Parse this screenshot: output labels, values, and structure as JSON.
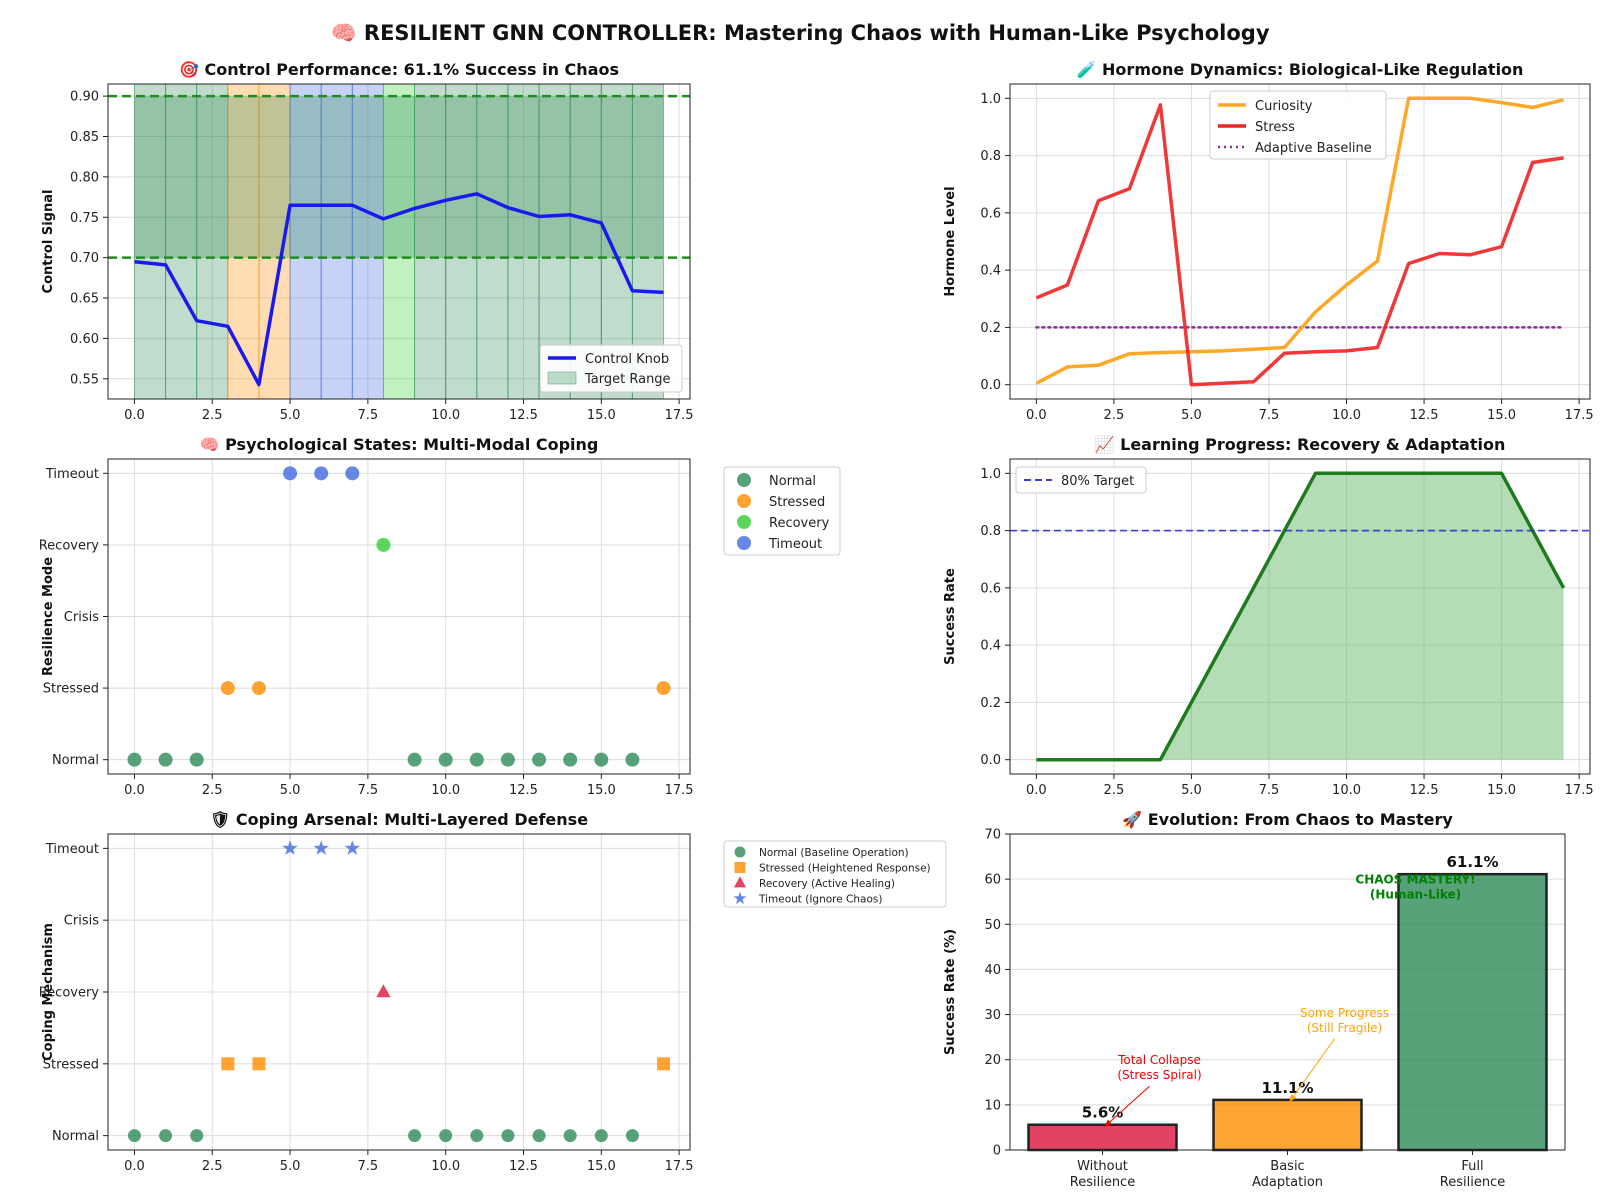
{
  "suptitle": "🧠 RESILIENT GNN CONTROLLER: Mastering Chaos with Human-Like Psychology",
  "chart_data": [
    {
      "id": "control",
      "type": "line",
      "title": "🎯 Control Performance: 61.1% Success in Chaos",
      "xlabel": "",
      "ylabel": "Control Signal",
      "xlim": [
        -0.85,
        17.85
      ],
      "ylim": [
        0.525,
        0.915
      ],
      "xticks": [
        0,
        2.5,
        5,
        7.5,
        10,
        12.5,
        15,
        17.5
      ],
      "xtick_labels": [
        "0.0",
        "2.5",
        "5.0",
        "7.5",
        "10.0",
        "12.5",
        "15.0",
        "17.5"
      ],
      "yticks": [
        0.55,
        0.6,
        0.65,
        0.7,
        0.75,
        0.8,
        0.85,
        0.9
      ],
      "ytick_labels": [
        "0.55",
        "0.60",
        "0.65",
        "0.70",
        "0.75",
        "0.80",
        "0.85",
        "0.90"
      ],
      "target_range": [
        0.7,
        0.9
      ],
      "mode_bands": [
        "Normal",
        "Normal",
        "Normal",
        "Stressed",
        "Stressed",
        "Timeout",
        "Timeout",
        "Timeout",
        "Recovery",
        "Normal",
        "Normal",
        "Normal",
        "Normal",
        "Normal",
        "Normal",
        "Normal",
        "Normal"
      ],
      "band_colors": {
        "Normal": "#2e8b57",
        "Stressed": "#ff8c00",
        "Timeout": "#4169e1",
        "Recovery": "#32cd32"
      },
      "series": [
        {
          "name": "Control Knob",
          "color": "#1a1aee",
          "x": [
            0,
            1,
            2,
            3,
            4,
            5,
            6,
            7,
            8,
            9,
            10,
            11,
            12,
            13,
            14,
            15,
            16,
            17
          ],
          "y": [
            0.695,
            0.691,
            0.622,
            0.615,
            0.543,
            0.765,
            0.765,
            0.765,
            0.748,
            0.761,
            0.771,
            0.779,
            0.762,
            0.751,
            0.753,
            0.743,
            0.659,
            0.657
          ]
        }
      ],
      "legend": [
        "Control Knob",
        "Target Range"
      ],
      "legend_position": "lower-right"
    },
    {
      "id": "hormones",
      "type": "line",
      "title": "🧪 Hormone Dynamics: Biological-Like Regulation",
      "xlabel": "",
      "ylabel": "Hormone Level",
      "xlim": [
        -0.85,
        17.85
      ],
      "ylim": [
        -0.05,
        1.05
      ],
      "xticks": [
        0,
        2.5,
        5,
        7.5,
        10,
        12.5,
        15,
        17.5
      ],
      "xtick_labels": [
        "0.0",
        "2.5",
        "5.0",
        "7.5",
        "10.0",
        "12.5",
        "15.0",
        "17.5"
      ],
      "yticks": [
        0,
        0.2,
        0.4,
        0.6,
        0.8,
        1.0
      ],
      "ytick_labels": [
        "0.0",
        "0.2",
        "0.4",
        "0.6",
        "0.8",
        "1.0"
      ],
      "series": [
        {
          "name": "Curiosity",
          "color": "#ffa726",
          "x": [
            0,
            1,
            2,
            3,
            4,
            5,
            6,
            7,
            8,
            9,
            10,
            11,
            12,
            13,
            14,
            15,
            16,
            17
          ],
          "y": [
            0.005,
            0.062,
            0.068,
            0.108,
            0.112,
            0.115,
            0.118,
            0.124,
            0.13,
            0.254,
            0.348,
            0.432,
            1.0,
            1.0,
            1.0,
            0.985,
            0.968,
            0.995
          ]
        },
        {
          "name": "Stress",
          "color": "#ee2222",
          "x": [
            0,
            1,
            2,
            3,
            4,
            5,
            6,
            7,
            8,
            9,
            10,
            11,
            12,
            13,
            14,
            15,
            16,
            17
          ],
          "y": [
            0.303,
            0.348,
            0.642,
            0.684,
            0.977,
            0.0,
            0.005,
            0.01,
            0.11,
            0.115,
            0.118,
            0.13,
            0.423,
            0.458,
            0.454,
            0.482,
            0.776,
            0.792
          ]
        },
        {
          "name": "Adaptive Baseline",
          "color": "#8e2f9e",
          "x": [
            0,
            17
          ],
          "y": [
            0.2,
            0.2
          ]
        }
      ],
      "legend_position": "upper-center"
    },
    {
      "id": "states",
      "type": "scatter",
      "title": "🧠 Psychological States: Multi-Modal Coping",
      "xlabel": "",
      "ylabel": "Resilience Mode",
      "xlim": [
        -0.85,
        17.85
      ],
      "ylim": [
        -0.2,
        4.2
      ],
      "xticks": [
        0,
        2.5,
        5,
        7.5,
        10,
        12.5,
        15,
        17.5
      ],
      "xtick_labels": [
        "0.0",
        "2.5",
        "5.0",
        "7.5",
        "10.0",
        "12.5",
        "15.0",
        "17.5"
      ],
      "y_categories": [
        "Normal",
        "Stressed",
        "Crisis",
        "Recovery",
        "Timeout"
      ],
      "series": [
        {
          "name": "Normal",
          "color": "#2e8b57",
          "level": 0,
          "x": [
            0,
            1,
            2,
            9,
            10,
            11,
            12,
            13,
            14,
            15,
            16
          ]
        },
        {
          "name": "Stressed",
          "color": "#ff8c00",
          "level": 1,
          "x": [
            3,
            4,
            17
          ]
        },
        {
          "name": "Recovery",
          "color": "#32cd32",
          "level": 3,
          "x": [
            8
          ]
        },
        {
          "name": "Timeout",
          "color": "#4169e1",
          "level": 4,
          "x": [
            5,
            6,
            7
          ]
        }
      ],
      "legend_position": "outside-upper-right"
    },
    {
      "id": "learning",
      "type": "area",
      "title": "📈 Learning Progress: Recovery & Adaptation",
      "xlabel": "",
      "ylabel": "Success Rate",
      "xlim": [
        -0.85,
        17.85
      ],
      "ylim": [
        -0.05,
        1.05
      ],
      "xticks": [
        0,
        2.5,
        5,
        7.5,
        10,
        12.5,
        15,
        17.5
      ],
      "xtick_labels": [
        "0.0",
        "2.5",
        "5.0",
        "7.5",
        "10.0",
        "12.5",
        "15.0",
        "17.5"
      ],
      "yticks": [
        0,
        0.2,
        0.4,
        0.6,
        0.8,
        1.0
      ],
      "ytick_labels": [
        "0.0",
        "0.2",
        "0.4",
        "0.6",
        "0.8",
        "1.0"
      ],
      "target": {
        "name": "80% Target",
        "value": 0.8,
        "color": "#2222dd"
      },
      "series": [
        {
          "name": "",
          "color": "#1f7a1f",
          "x": [
            0,
            1,
            2,
            3,
            4,
            5,
            6,
            7,
            8,
            9,
            10,
            11,
            12,
            13,
            14,
            15,
            16,
            17
          ],
          "y": [
            0,
            0,
            0,
            0,
            0,
            0.2,
            0.4,
            0.6,
            0.8,
            1.0,
            1.0,
            1.0,
            1.0,
            1.0,
            1.0,
            1.0,
            0.8,
            0.6
          ]
        }
      ],
      "legend_position": "upper-left"
    },
    {
      "id": "coping",
      "type": "scatter",
      "title": "🛡 Coping Arsenal: Multi-Layered Defense",
      "xlabel": "",
      "ylabel": "Coping Mechanism",
      "xlim": [
        -0.85,
        17.85
      ],
      "ylim": [
        -0.2,
        4.2
      ],
      "xticks": [
        0,
        2.5,
        5,
        7.5,
        10,
        12.5,
        15,
        17.5
      ],
      "xtick_labels": [
        "0.0",
        "2.5",
        "5.0",
        "7.5",
        "10.0",
        "12.5",
        "15.0",
        "17.5"
      ],
      "y_categories": [
        "Normal",
        "Stressed",
        "Recovery",
        "Crisis",
        "Timeout"
      ],
      "series": [
        {
          "name": "Normal (Baseline Operation)",
          "color": "#2e8b57",
          "marker": "circle",
          "level": 0,
          "x": [
            0,
            1,
            2,
            9,
            10,
            11,
            12,
            13,
            14,
            15,
            16
          ]
        },
        {
          "name": "Stressed (Heightened Response)",
          "color": "#ff8c00",
          "marker": "square",
          "level": 1,
          "x": [
            3,
            4,
            17
          ]
        },
        {
          "name": "Recovery (Active Healing)",
          "color": "#dc143c",
          "marker": "triangle",
          "level": 2,
          "x": [
            8
          ]
        },
        {
          "name": "Timeout (Ignore Chaos)",
          "color": "#4169e1",
          "marker": "star",
          "level": 4,
          "x": [
            5,
            6,
            7
          ]
        }
      ],
      "legend_position": "outside-upper-right"
    },
    {
      "id": "evolution",
      "type": "bar",
      "title": "🚀 Evolution: From Chaos to Mastery",
      "xlabel": "",
      "ylabel": "Success Rate (%)",
      "ylim": [
        0,
        70
      ],
      "yticks": [
        0,
        10,
        20,
        30,
        40,
        50,
        60,
        70
      ],
      "categories": [
        [
          "Without",
          "Resilience"
        ],
        [
          "Basic",
          "Adaptation"
        ],
        [
          "Full",
          "Resilience"
        ]
      ],
      "values": [
        5.6,
        11.1,
        61.1
      ],
      "value_labels": [
        "5.6%",
        "11.1%",
        "61.1%"
      ],
      "colors": [
        "#dc143c",
        "#ff8c00",
        "#2e8b57"
      ],
      "annotations": [
        {
          "lines": [
            "Total Collapse",
            "(Stress Spiral)"
          ],
          "color": "#ee0000",
          "target_bar": 0,
          "arrow": true
        },
        {
          "lines": [
            "Some Progress",
            "(Still Fragile)"
          ],
          "color": "#ffa500",
          "target_bar": 1,
          "arrow": true
        },
        {
          "lines": [
            "CHAOS MASTERY!",
            "(Human-Like)"
          ],
          "color": "#008000",
          "target_bar": 2,
          "arrow": false,
          "bold": true
        }
      ]
    }
  ]
}
